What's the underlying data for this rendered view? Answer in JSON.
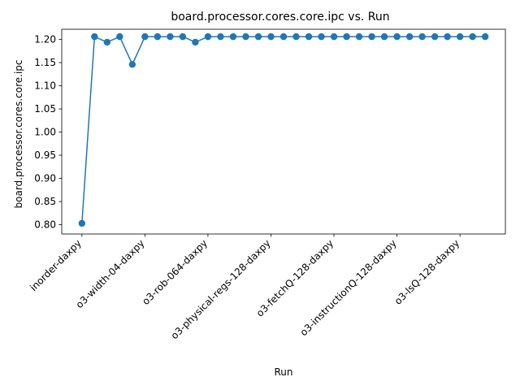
{
  "chart_data": {
    "type": "line",
    "title": "board.processor.cores.core.ipc vs. Run",
    "xlabel": "Run",
    "ylabel": "board.processor.cores.core.ipc",
    "ylim": [
      0.78,
      1.222
    ],
    "yticks": [
      0.8,
      0.85,
      0.9,
      0.95,
      1.0,
      1.05,
      1.1,
      1.15,
      1.2
    ],
    "xtick_positions": [
      0,
      5,
      10,
      15,
      20,
      25,
      30
    ],
    "xtick_labels": [
      "inorder-daxpy",
      "o3-width-04-daxpy",
      "o3-rob-064-daxpy",
      "o3-physical-regs-128-daxpy",
      "o3-fetchQ-128-daxpy",
      "o3-instructionQ-128-daxpy",
      "o3-lsQ-128-daxpy"
    ],
    "color": "#1f77b4",
    "grid": false,
    "x": [
      0,
      1,
      2,
      3,
      4,
      5,
      6,
      7,
      8,
      9,
      10,
      11,
      12,
      13,
      14,
      15,
      16,
      17,
      18,
      19,
      20,
      21,
      22,
      23,
      24,
      25,
      26,
      27,
      28,
      29,
      30,
      31,
      32
    ],
    "values": [
      0.803,
      1.206,
      1.194,
      1.206,
      1.146,
      1.206,
      1.206,
      1.206,
      1.206,
      1.194,
      1.206,
      1.206,
      1.206,
      1.206,
      1.206,
      1.206,
      1.206,
      1.206,
      1.206,
      1.206,
      1.206,
      1.206,
      1.206,
      1.206,
      1.206,
      1.206,
      1.206,
      1.206,
      1.206,
      1.206,
      1.206,
      1.206,
      1.206
    ]
  }
}
